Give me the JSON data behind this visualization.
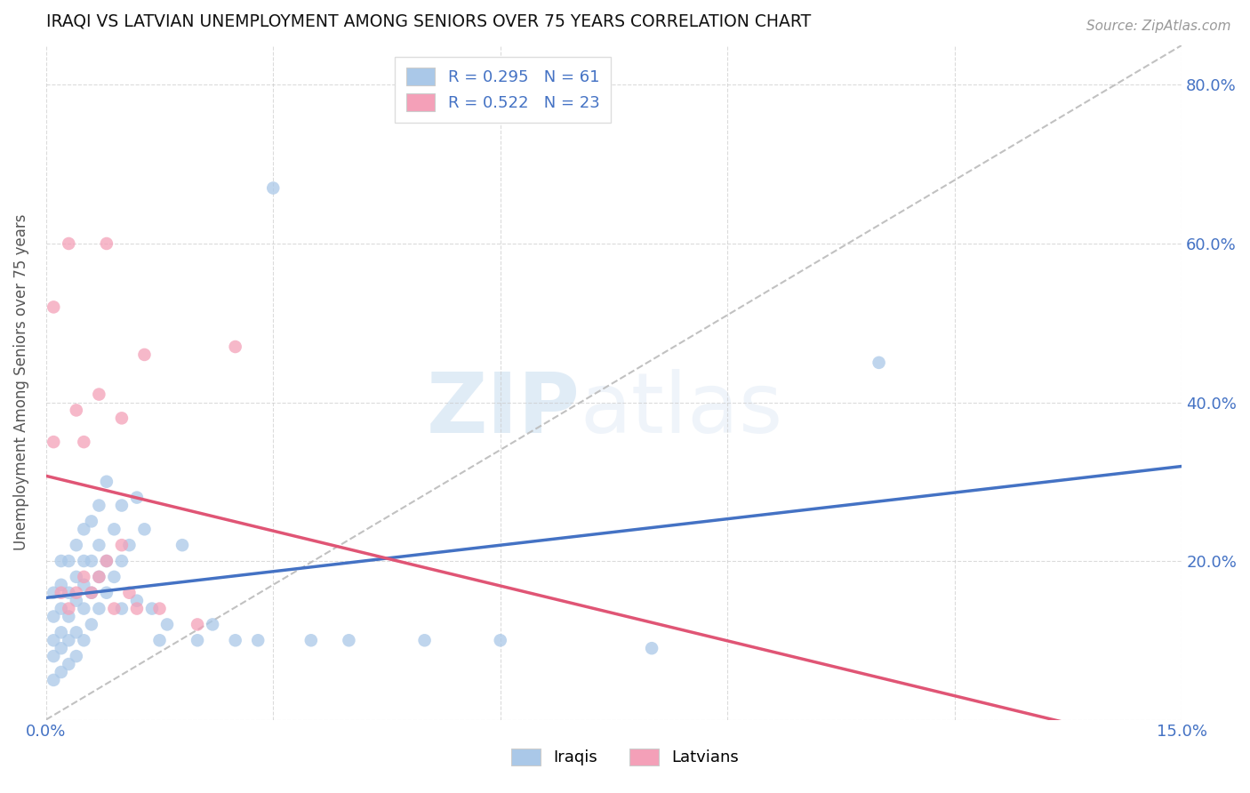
{
  "title": "IRAQI VS LATVIAN UNEMPLOYMENT AMONG SENIORS OVER 75 YEARS CORRELATION CHART",
  "source": "Source: ZipAtlas.com",
  "ylabel": "Unemployment Among Seniors over 75 years",
  "xlim": [
    0.0,
    0.15
  ],
  "ylim": [
    0.0,
    0.85
  ],
  "legend_labels": [
    "Iraqis",
    "Latvians"
  ],
  "legend_r1": "R = 0.295",
  "legend_n1": "N = 61",
  "legend_r2": "R = 0.522",
  "legend_n2": "N = 23",
  "iraqis_color": "#aac8e8",
  "latvians_color": "#f4a0b8",
  "iraqis_line_color": "#4472c4",
  "latvians_line_color": "#e05575",
  "diagonal_color": "#bbbbbb",
  "watermark_zip": "ZIP",
  "watermark_atlas": "atlas",
  "iraqis_x": [
    0.001,
    0.001,
    0.001,
    0.001,
    0.001,
    0.002,
    0.002,
    0.002,
    0.002,
    0.002,
    0.002,
    0.003,
    0.003,
    0.003,
    0.003,
    0.003,
    0.004,
    0.004,
    0.004,
    0.004,
    0.004,
    0.005,
    0.005,
    0.005,
    0.005,
    0.005,
    0.006,
    0.006,
    0.006,
    0.006,
    0.007,
    0.007,
    0.007,
    0.007,
    0.008,
    0.008,
    0.008,
    0.009,
    0.009,
    0.01,
    0.01,
    0.01,
    0.011,
    0.012,
    0.012,
    0.013,
    0.014,
    0.015,
    0.016,
    0.018,
    0.02,
    0.022,
    0.025,
    0.028,
    0.03,
    0.035,
    0.04,
    0.05,
    0.06,
    0.08,
    0.11
  ],
  "iraqis_y": [
    0.05,
    0.08,
    0.1,
    0.13,
    0.16,
    0.06,
    0.09,
    0.11,
    0.14,
    0.17,
    0.2,
    0.07,
    0.1,
    0.13,
    0.16,
    0.2,
    0.08,
    0.11,
    0.15,
    0.18,
    0.22,
    0.1,
    0.14,
    0.17,
    0.2,
    0.24,
    0.12,
    0.16,
    0.2,
    0.25,
    0.14,
    0.18,
    0.22,
    0.27,
    0.16,
    0.2,
    0.3,
    0.18,
    0.24,
    0.14,
    0.2,
    0.27,
    0.22,
    0.15,
    0.28,
    0.24,
    0.14,
    0.1,
    0.12,
    0.22,
    0.1,
    0.12,
    0.1,
    0.1,
    0.67,
    0.1,
    0.1,
    0.1,
    0.1,
    0.09,
    0.45
  ],
  "latvians_x": [
    0.001,
    0.001,
    0.002,
    0.003,
    0.003,
    0.004,
    0.004,
    0.005,
    0.005,
    0.006,
    0.007,
    0.007,
    0.008,
    0.008,
    0.009,
    0.01,
    0.01,
    0.011,
    0.012,
    0.013,
    0.015,
    0.02,
    0.025
  ],
  "latvians_y": [
    0.35,
    0.52,
    0.16,
    0.14,
    0.6,
    0.16,
    0.39,
    0.18,
    0.35,
    0.16,
    0.18,
    0.41,
    0.2,
    0.6,
    0.14,
    0.22,
    0.38,
    0.16,
    0.14,
    0.46,
    0.14,
    0.12,
    0.47
  ]
}
